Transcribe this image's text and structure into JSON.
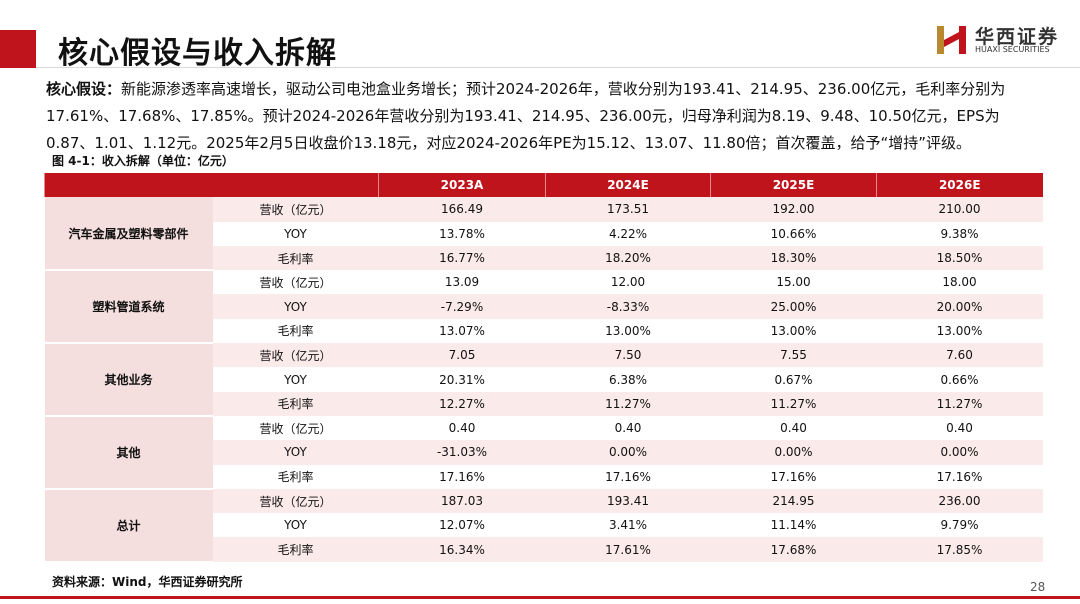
{
  "header": {
    "title": "核心假设与收入拆解",
    "logo_cn": "华西证券",
    "logo_en": "HUAXI SECURITIES"
  },
  "paragraph": {
    "lead": "核心假设：",
    "text": "新能源渗透率高速增长，驱动公司电池盒业务增长；预计2024-2026年，营收分别为193.41、214.95、236.00亿元，毛利率分别为17.61%、17.68%、17.85%。预计2024-2026年营收分别为193.41、214.95、236.00元，归母净利润为8.19、9.48、10.50亿元，EPS为0.87、1.01、1.12元。2025年2月5日收盘价13.18元，对应2024-2026年PE为15.12、13.07、11.80倍；首次覆盖，给予“增持”评级。"
  },
  "caption": "图 4-1：收入拆解（单位：亿元）",
  "table": {
    "columns": [
      "2023A",
      "2024E",
      "2025E",
      "2026E"
    ],
    "groups": [
      {
        "name": "汽车金属及塑料零部件",
        "rows": [
          {
            "metric": "营收（亿元）",
            "values": [
              "166.49",
              "173.51",
              "192.00",
              "210.00"
            ]
          },
          {
            "metric": "YOY",
            "values": [
              "13.78%",
              "4.22%",
              "10.66%",
              "9.38%"
            ]
          },
          {
            "metric": "毛利率",
            "values": [
              "16.77%",
              "18.20%",
              "18.30%",
              "18.50%"
            ]
          }
        ]
      },
      {
        "name": "塑料管道系统",
        "rows": [
          {
            "metric": "营收（亿元）",
            "values": [
              "13.09",
              "12.00",
              "15.00",
              "18.00"
            ]
          },
          {
            "metric": "YOY",
            "values": [
              "-7.29%",
              "-8.33%",
              "25.00%",
              "20.00%"
            ]
          },
          {
            "metric": "毛利率",
            "values": [
              "13.07%",
              "13.00%",
              "13.00%",
              "13.00%"
            ]
          }
        ]
      },
      {
        "name": "其他业务",
        "rows": [
          {
            "metric": "营收（亿元）",
            "values": [
              "7.05",
              "7.50",
              "7.55",
              "7.60"
            ]
          },
          {
            "metric": "YOY",
            "values": [
              "20.31%",
              "6.38%",
              "0.67%",
              "0.66%"
            ]
          },
          {
            "metric": "毛利率",
            "values": [
              "12.27%",
              "11.27%",
              "11.27%",
              "11.27%"
            ]
          }
        ]
      },
      {
        "name": "其他",
        "rows": [
          {
            "metric": "营收（亿元）",
            "values": [
              "0.40",
              "0.40",
              "0.40",
              "0.40"
            ]
          },
          {
            "metric": "YOY",
            "values": [
              "-31.03%",
              "0.00%",
              "0.00%",
              "0.00%"
            ]
          },
          {
            "metric": "毛利率",
            "values": [
              "17.16%",
              "17.16%",
              "17.16%",
              "17.16%"
            ]
          }
        ]
      },
      {
        "name": "总计",
        "rows": [
          {
            "metric": "营收（亿元）",
            "values": [
              "187.03",
              "193.41",
              "214.95",
              "236.00"
            ]
          },
          {
            "metric": "YOY",
            "values": [
              "12.07%",
              "3.41%",
              "11.14%",
              "9.79%"
            ]
          },
          {
            "metric": "毛利率",
            "values": [
              "16.34%",
              "17.61%",
              "17.68%",
              "17.85%"
            ]
          }
        ]
      }
    ]
  },
  "footer": {
    "source": "资料来源：Wind，华西证券研究所",
    "page_number": "28"
  }
}
